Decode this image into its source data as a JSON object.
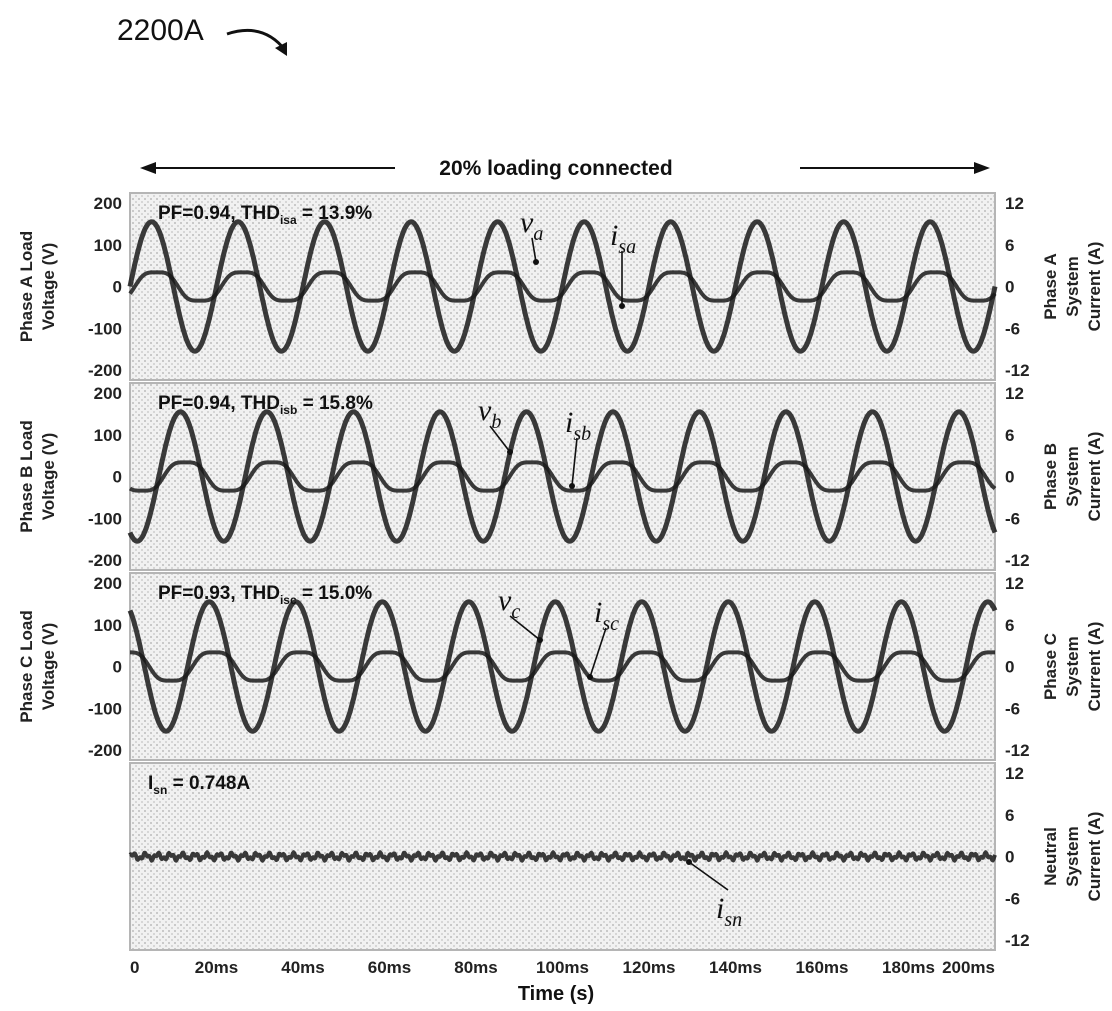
{
  "figure_label": "2200A",
  "chart_data": {
    "type": "line",
    "title": "20% loading connected",
    "xlabel": "Time (s)",
    "x_ticks": [
      "0",
      "20ms",
      "40ms",
      "60ms",
      "80ms",
      "100ms",
      "120ms",
      "140ms",
      "160ms",
      "180ms",
      "200ms"
    ],
    "xlim": [
      0,
      200
    ],
    "frequency_hz": 50,
    "grid": true,
    "panels": [
      {
        "id": "a",
        "ylabel_left": [
          "Phase A Load",
          "Voltage (V)"
        ],
        "ylabel_right": [
          "Phase A",
          "System",
          "Current (A)"
        ],
        "left_ticks": [
          "200",
          "100",
          "0",
          "-100",
          "-200"
        ],
        "right_ticks": [
          "12",
          "6",
          "0",
          "-6",
          "-12"
        ],
        "ylim_left": [
          -200,
          200
        ],
        "ylim_right": [
          -12,
          12
        ],
        "annotation": {
          "prefix": "PF=0.94, THD",
          "sub": "isa",
          "suffix": " = 13.9%"
        },
        "series": [
          {
            "name": "v",
            "sub": "a",
            "axis": "left",
            "amplitude": 155,
            "phase_deg": 0
          },
          {
            "name": "i",
            "sub": "sa",
            "axis": "right",
            "amplitude": 2.3,
            "phase_deg": -20
          }
        ]
      },
      {
        "id": "b",
        "ylabel_left": [
          "Phase B Load",
          "Voltage (V)"
        ],
        "ylabel_right": [
          "Phase B",
          "System",
          "Current (A)"
        ],
        "left_ticks": [
          "200",
          "100",
          "0",
          "-100",
          "-200"
        ],
        "right_ticks": [
          "12",
          "6",
          "0",
          "-6",
          "-12"
        ],
        "ylim_left": [
          -200,
          200
        ],
        "ylim_right": [
          -12,
          12
        ],
        "annotation": {
          "prefix": "PF=0.94, THD",
          "sub": "isb",
          "suffix": " = 15.8%"
        },
        "series": [
          {
            "name": "v",
            "sub": "b",
            "axis": "left",
            "amplitude": 155,
            "phase_deg": -120
          },
          {
            "name": "i",
            "sub": "sb",
            "axis": "right",
            "amplitude": 2.3,
            "phase_deg": -140
          }
        ]
      },
      {
        "id": "c",
        "ylabel_left": [
          "Phase C Load",
          "Voltage (V)"
        ],
        "ylabel_right": [
          "Phase C",
          "System",
          "Current (A)"
        ],
        "left_ticks": [
          "200",
          "100",
          "0",
          "-100",
          "-200"
        ],
        "right_ticks": [
          "12",
          "6",
          "0",
          "-6",
          "-12"
        ],
        "ylim_left": [
          -200,
          200
        ],
        "ylim_right": [
          -12,
          12
        ],
        "annotation": {
          "prefix": "PF=0.93, THD",
          "sub": "isc",
          "suffix": " = 15.0%"
        },
        "series": [
          {
            "name": "v",
            "sub": "c",
            "axis": "left",
            "amplitude": 155,
            "phase_deg": 120
          },
          {
            "name": "i",
            "sub": "sc",
            "axis": "right",
            "amplitude": 2.3,
            "phase_deg": 100
          }
        ]
      },
      {
        "id": "n",
        "ylabel_left": [],
        "ylabel_right": [
          "Neutral",
          "System",
          "Current (A)"
        ],
        "left_ticks": [],
        "right_ticks": [
          "12",
          "6",
          "0",
          "-6",
          "-12"
        ],
        "ylim_right": [
          -12,
          12
        ],
        "annotation": {
          "prefix": "I",
          "sub": "sn",
          "suffix": " = 0.748A"
        },
        "series": [
          {
            "name": "i",
            "sub": "sn",
            "axis": "right",
            "amplitude": 0.6,
            "phase_deg": 0,
            "noise": true
          }
        ]
      }
    ]
  }
}
